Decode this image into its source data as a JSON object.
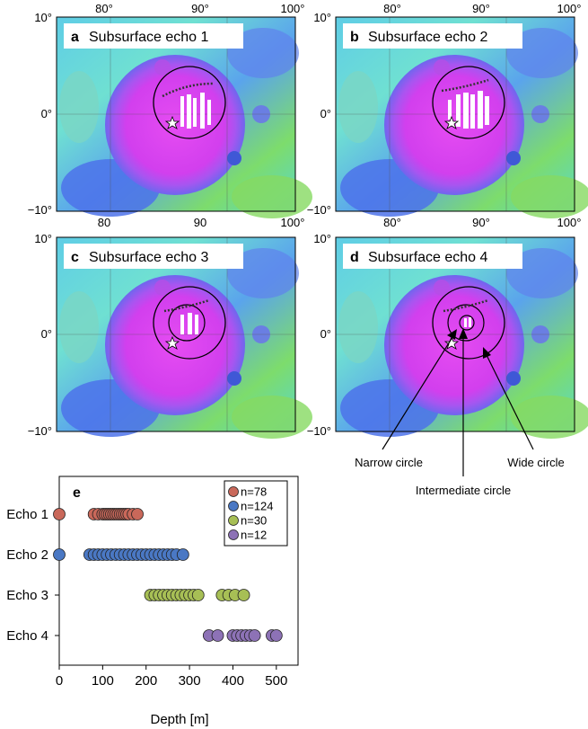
{
  "map_panels": [
    {
      "letter": "a",
      "title": "Subsurface echo 1",
      "xticks_top": [
        "80°",
        "90°",
        "100°"
      ],
      "xticks_bottom": [
        "80",
        "90",
        "100°"
      ],
      "yticks": [
        "10°",
        "0°",
        "−10°"
      ]
    },
    {
      "letter": "b",
      "title": "Subsurface echo 2",
      "xticks_top": [
        "80°",
        "90°",
        "100°"
      ],
      "xticks_bottom": [
        "80°",
        "90°",
        "100°"
      ],
      "yticks": [
        "10°",
        "0°",
        "−10°"
      ]
    },
    {
      "letter": "c",
      "title": "Subsurface echo 3",
      "yticks": [
        "10°",
        "0°",
        "−10°"
      ]
    },
    {
      "letter": "d",
      "title": "Subsurface echo 4",
      "yticks": [
        "10°",
        "0°",
        "−10°"
      ]
    }
  ],
  "annotations": {
    "narrow": "Narrow circle",
    "intermediate": "Intermediate circle",
    "wide": "Wide circle"
  },
  "colors": {
    "echo1": "#c9685a",
    "echo2": "#4a78c4",
    "echo3": "#a7bf55",
    "echo4": "#8d72b6",
    "crater_floor": "#d640f0",
    "highland_blue": "#4d6be8",
    "highland_cyan": "#4fd7e0",
    "highland_green": "#74d36b"
  },
  "chart_data": {
    "type": "scatter",
    "panel_letter": "e",
    "xlabel": "Depth [m]",
    "xlim": [
      0,
      550
    ],
    "xticks": [
      0,
      100,
      200,
      300,
      400,
      500
    ],
    "categories": [
      "Echo 1",
      "Echo 2",
      "Echo 3",
      "Echo 4"
    ],
    "legend_position": "top-right",
    "series": [
      {
        "name": "n=78",
        "category": "Echo 1",
        "values": [
          0,
          80,
          90,
          100,
          105,
          110,
          115,
          120,
          125,
          130,
          135,
          140,
          145,
          150,
          155,
          160,
          170,
          180
        ]
      },
      {
        "name": "n=124",
        "category": "Echo 2",
        "values": [
          0,
          70,
          80,
          90,
          100,
          110,
          120,
          130,
          140,
          150,
          160,
          170,
          180,
          190,
          200,
          210,
          220,
          230,
          240,
          250,
          260,
          270,
          285
        ]
      },
      {
        "name": "n=30",
        "category": "Echo 3",
        "values": [
          210,
          220,
          230,
          240,
          250,
          260,
          270,
          280,
          290,
          300,
          310,
          320,
          375,
          390,
          405,
          425
        ]
      },
      {
        "name": "n=12",
        "category": "Echo 4",
        "values": [
          345,
          365,
          400,
          410,
          420,
          430,
          440,
          450,
          490,
          500
        ]
      }
    ]
  }
}
